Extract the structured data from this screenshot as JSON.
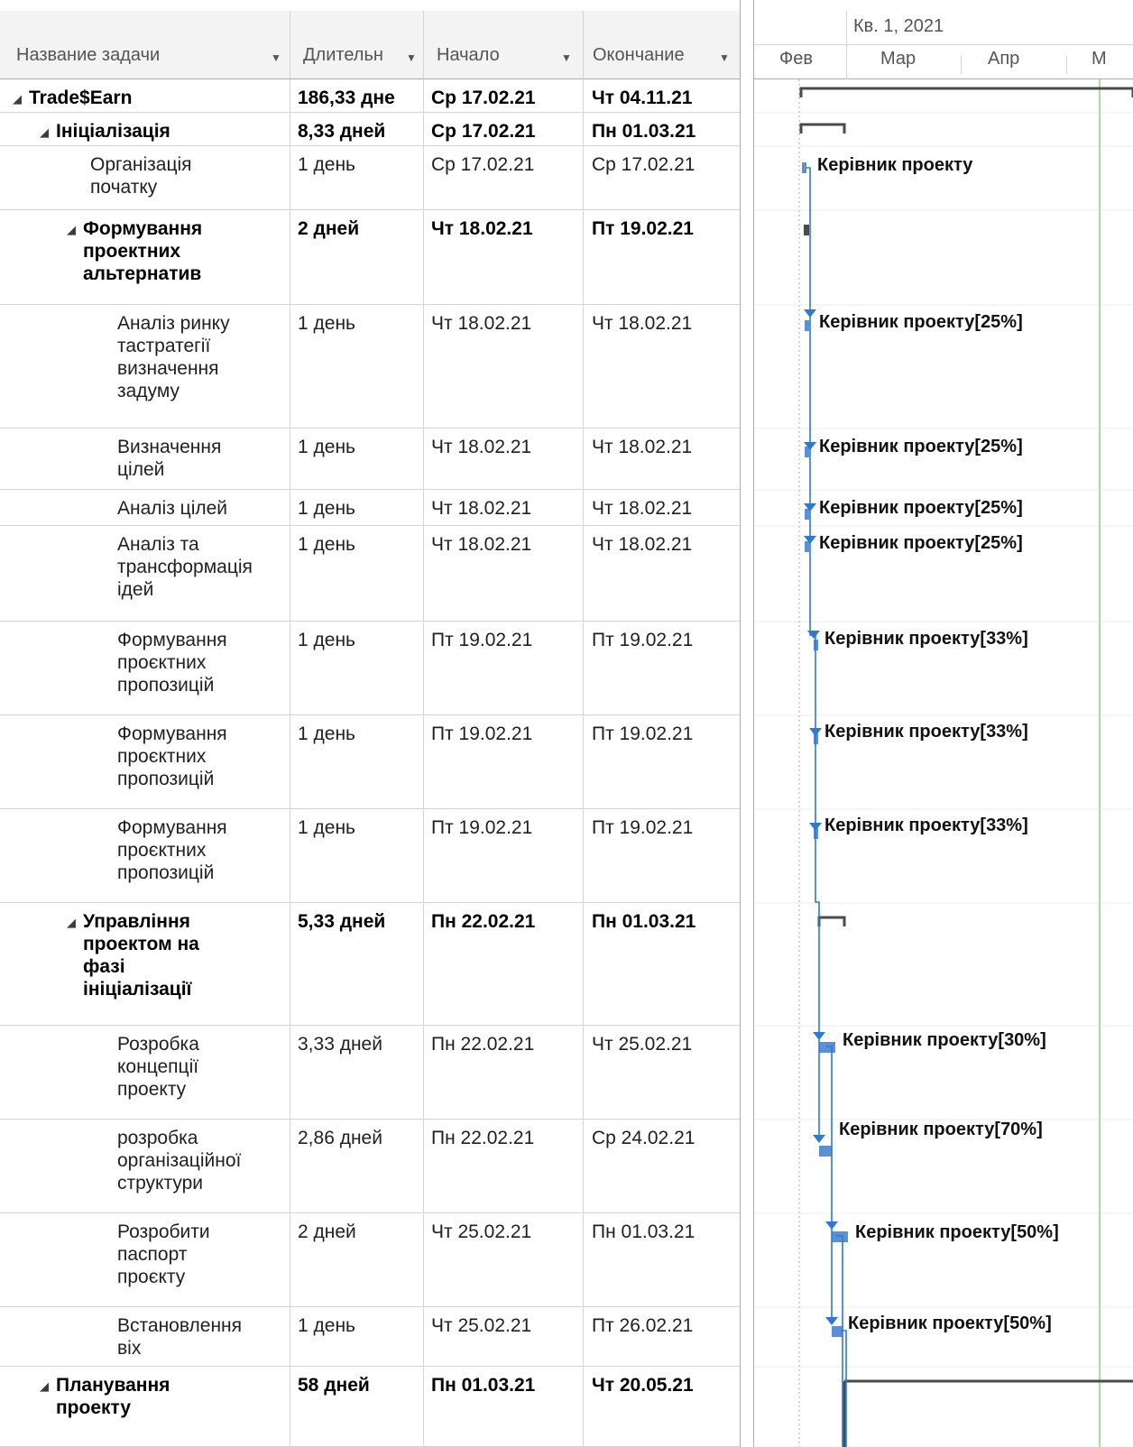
{
  "columns": {
    "name": "Название задачи",
    "duration": "Длительн",
    "start": "Начало",
    "finish": "Окончание"
  },
  "timescale": {
    "quarter": "Кв. 1, 2021",
    "months": [
      "Фев",
      "Мар",
      "Апр",
      "М"
    ]
  },
  "colors": {
    "bar": "#5b8fd6",
    "link": "#2e7ad1",
    "summary": "#4a4a4a",
    "today_line": "#8cd47e",
    "grid": "#d4d4d4"
  },
  "tasks": [
    {
      "name": "Trade$Earn",
      "duration": "186,33 дне",
      "start": "Ср 17.02.21",
      "finish": "Чт 04.11.21",
      "summary": true,
      "level": 0,
      "resource": ""
    },
    {
      "name": "Ініціалізація",
      "duration": "8,33 дней",
      "start": "Ср 17.02.21",
      "finish": "Пн 01.03.21",
      "summary": true,
      "level": 1,
      "resource": ""
    },
    {
      "name": "Організація\nпочатку",
      "duration": "1 день",
      "start": "Ср 17.02.21",
      "finish": "Ср 17.02.21",
      "summary": false,
      "level": 2,
      "resource": "Керівник проекту"
    },
    {
      "name": "Формування\nпроектних\nальтернатив",
      "duration": "2 дней",
      "start": "Чт 18.02.21",
      "finish": "Пт 19.02.21",
      "summary": true,
      "level": 2,
      "resource": ""
    },
    {
      "name": "Аналіз ринку\nтастратегії\nвизначення\nзадуму",
      "duration": "1 день",
      "start": "Чт 18.02.21",
      "finish": "Чт 18.02.21",
      "summary": false,
      "level": 3,
      "resource": "Керівник проекту[25%]"
    },
    {
      "name": "Визначення\nцілей",
      "duration": "1 день",
      "start": "Чт 18.02.21",
      "finish": "Чт 18.02.21",
      "summary": false,
      "level": 3,
      "resource": "Керівник проекту[25%]"
    },
    {
      "name": "Аналіз цілей",
      "duration": "1 день",
      "start": "Чт 18.02.21",
      "finish": "Чт 18.02.21",
      "summary": false,
      "level": 3,
      "resource": "Керівник проекту[25%]"
    },
    {
      "name": "Аналіз та\nтрансформація\nідей",
      "duration": "1 день",
      "start": "Чт 18.02.21",
      "finish": "Чт 18.02.21",
      "summary": false,
      "level": 3,
      "resource": "Керівник проекту[25%]"
    },
    {
      "name": "Формування\nпроєктних\nпропозицій",
      "duration": "1 день",
      "start": "Пт 19.02.21",
      "finish": "Пт 19.02.21",
      "summary": false,
      "level": 3,
      "resource": "Керівник проекту[33%]"
    },
    {
      "name": "Формування\nпроєктних\nпропозицій",
      "duration": "1 день",
      "start": "Пт 19.02.21",
      "finish": "Пт 19.02.21",
      "summary": false,
      "level": 3,
      "resource": "Керівник проекту[33%]"
    },
    {
      "name": "Формування\nпроєктних\nпропозицій",
      "duration": "1 день",
      "start": "Пт 19.02.21",
      "finish": "Пт 19.02.21",
      "summary": false,
      "level": 3,
      "resource": "Керівник проекту[33%]"
    },
    {
      "name": "Управління\nпроектом на\nфазі\nініціалізації",
      "duration": "5,33 дней",
      "start": "Пн 22.02.21",
      "finish": "Пн 01.03.21",
      "summary": true,
      "level": 2,
      "resource": ""
    },
    {
      "name": "Розробка\nконцепції\nпроекту",
      "duration": "3,33 дней",
      "start": "Пн 22.02.21",
      "finish": "Чт 25.02.21",
      "summary": false,
      "level": 3,
      "resource": "Керівник проекту[30%]"
    },
    {
      "name": "розробка\nорганізаційної\nструктури",
      "duration": "2,86 дней",
      "start": "Пн 22.02.21",
      "finish": "Ср 24.02.21",
      "summary": false,
      "level": 3,
      "resource": "Керівник проекту[70%]"
    },
    {
      "name": "Розробити\nпаспорт\nпроєкту",
      "duration": "2 дней",
      "start": "Чт 25.02.21",
      "finish": "Пн 01.03.21",
      "summary": false,
      "level": 3,
      "resource": "Керівник проекту[50%]"
    },
    {
      "name": "Встановлення\nвіх",
      "duration": "1 день",
      "start": "Чт 25.02.21",
      "finish": "Пт 26.02.21",
      "summary": false,
      "level": 3,
      "resource": "Керівник проекту[50%]"
    },
    {
      "name": "Планування\nпроекту",
      "duration": "58 дней",
      "start": "Пн 01.03.21",
      "finish": "Чт 20.05.21",
      "summary": true,
      "level": 1,
      "resource": ""
    }
  ]
}
